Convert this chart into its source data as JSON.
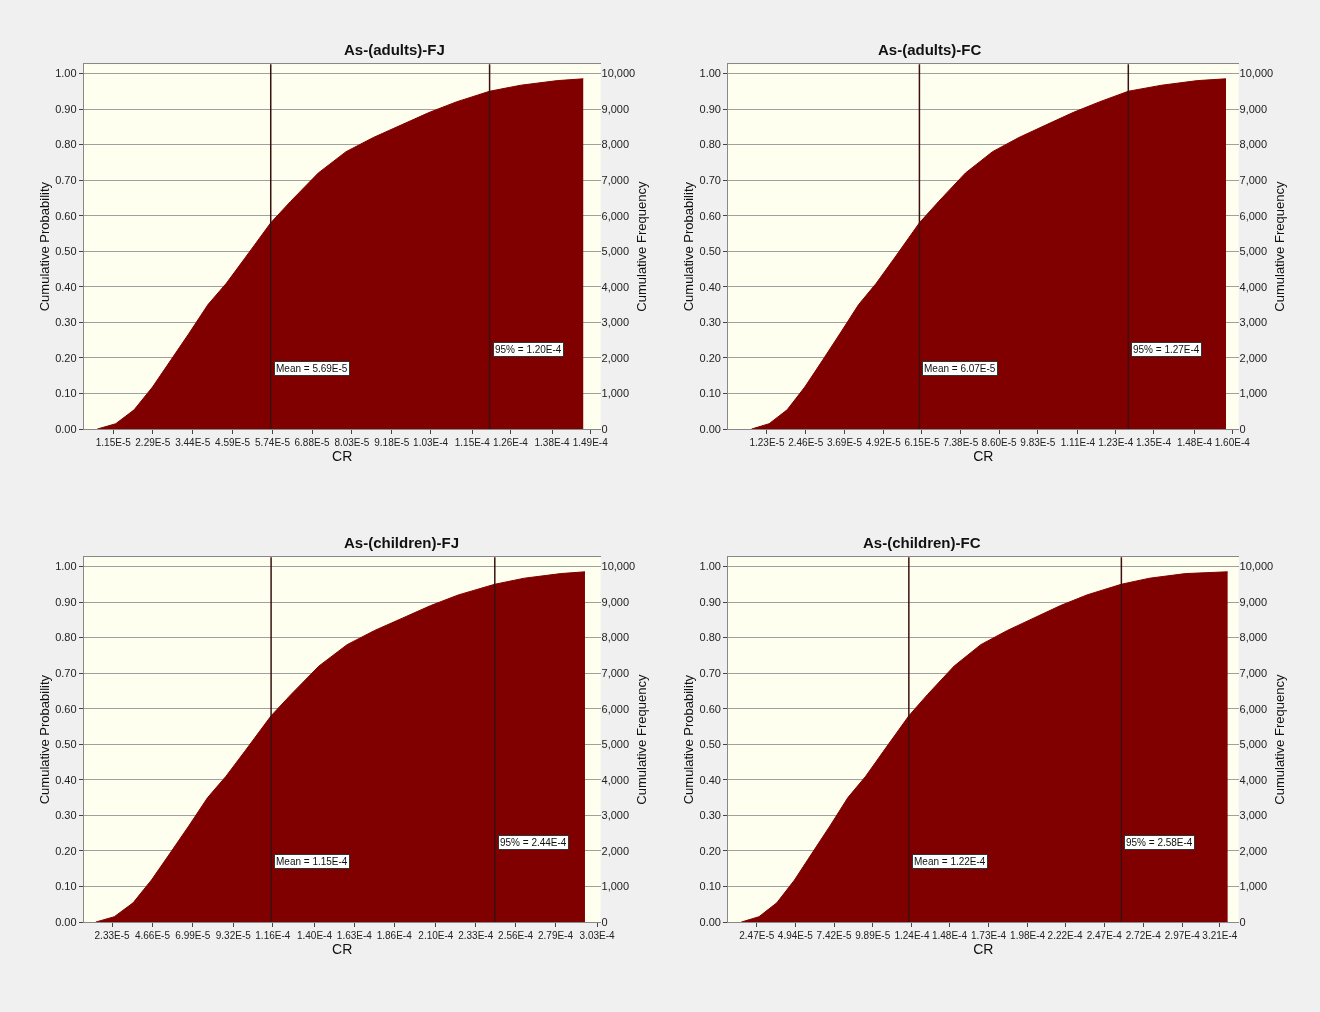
{
  "chart_data": [
    {
      "type": "area",
      "title": "As-(adults)-FJ",
      "xlabel": "CR",
      "ylabel": "Cumulative Probability",
      "y2label": "Cumulative Frequency",
      "color": "#800000",
      "grid": "y",
      "x": [
        6.9e-06,
        1.22e-05,
        1.75e-05,
        2.28e-05,
        2.81e-05,
        3.34e-05,
        3.88e-05,
        4.41e-05,
        4.94e-05,
        5.69e-05,
        6.26e-05,
        7.06e-05,
        7.86e-05,
        8.65e-05,
        9.45e-05,
        0.0001025,
        0.0001104,
        0.00012,
        0.000129,
        0.0001396,
        0.000147
      ],
      "values": [
        0,
        0.015,
        0.054,
        0.118,
        0.194,
        0.27,
        0.35,
        0.41,
        0.48,
        0.58,
        0.64,
        0.72,
        0.78,
        0.82,
        0.855,
        0.89,
        0.92,
        0.95,
        0.967,
        0.98,
        0.985
      ],
      "xlim": [
        3e-06,
        0.000152
      ],
      "xticks": [
        {
          "value": 1.15e-05,
          "label": "1.15E-5"
        },
        {
          "value": 2.29e-05,
          "label": "2.29E-5"
        },
        {
          "value": 3.44e-05,
          "label": "3.44E-5"
        },
        {
          "value": 4.59e-05,
          "label": "4.59E-5"
        },
        {
          "value": 5.74e-05,
          "label": "5.74E-5"
        },
        {
          "value": 6.88e-05,
          "label": "6.88E-5"
        },
        {
          "value": 8.03e-05,
          "label": "8.03E-5"
        },
        {
          "value": 9.18e-05,
          "label": "9.18E-5"
        },
        {
          "value": 0.000103,
          "label": "1.03E-4"
        },
        {
          "value": 0.000115,
          "label": "1.15E-4"
        },
        {
          "value": 0.000126,
          "label": "1.26E-4"
        },
        {
          "value": 0.000138,
          "label": "1.38E-4"
        },
        {
          "value": 0.000149,
          "label": "1.49E-4"
        }
      ],
      "ylim": [
        0,
        1.026
      ],
      "yticks": [
        {
          "value": 0,
          "label": "0.00"
        },
        {
          "value": 0.1,
          "label": "0.10"
        },
        {
          "value": 0.2,
          "label": "0.20"
        },
        {
          "value": 0.3,
          "label": "0.30"
        },
        {
          "value": 0.4,
          "label": "0.40"
        },
        {
          "value": 0.5,
          "label": "0.50"
        },
        {
          "value": 0.6,
          "label": "0.60"
        },
        {
          "value": 0.7,
          "label": "0.70"
        },
        {
          "value": 0.8,
          "label": "0.80"
        },
        {
          "value": 0.9,
          "label": "0.90"
        },
        {
          "value": 1,
          "label": "1.00"
        }
      ],
      "y2lim": [
        0,
        10260
      ],
      "y2ticks": [
        0,
        {
          "value": 1000,
          "label": "1,000"
        },
        {
          "value": 2000,
          "label": "2,000"
        },
        {
          "value": 3000,
          "label": "3,000"
        },
        {
          "value": 4000,
          "label": "4,000"
        },
        {
          "value": 5000,
          "label": "5,000"
        },
        {
          "value": 6000,
          "label": "6,000"
        },
        {
          "value": 7000,
          "label": "7,000"
        },
        {
          "value": 8000,
          "label": "8,000"
        },
        {
          "value": 9000,
          "label": "9,000"
        },
        {
          "value": 10000,
          "label": "10,000"
        }
      ],
      "ref_lines": [
        {
          "axis": "x",
          "value": 5.69e-05,
          "color": "#3a1010"
        },
        {
          "axis": "x",
          "value": 0.00012,
          "color": "#3a1010"
        }
      ],
      "annotations": [
        {
          "text": "Mean = 5.69E-5",
          "x": 5.69e-05,
          "y": 0.17
        },
        {
          "text": "95% = 1.20E-4",
          "x": 0.00012,
          "y": 0.225
        }
      ]
    },
    {
      "type": "area",
      "title": "As-(adults)-FC",
      "xlabel": "CR",
      "ylabel": "Cumulative Probability",
      "y2label": "Cumulative Frequency",
      "color": "#800000",
      "grid": "y",
      "x": [
        7.4e-06,
        1.3e-05,
        1.87e-05,
        2.43e-05,
        3e-05,
        3.56e-05,
        4.14e-05,
        4.7e-05,
        5.27e-05,
        6.07e-05,
        6.68e-05,
        7.53e-05,
        8.39e-05,
        9.23e-05,
        0.0001008,
        0.0001094,
        0.0001178,
        0.000127,
        0.0001376,
        0.000149,
        0.000158
      ],
      "values": [
        0,
        0.015,
        0.054,
        0.118,
        0.194,
        0.27,
        0.35,
        0.41,
        0.48,
        0.58,
        0.64,
        0.72,
        0.78,
        0.82,
        0.855,
        0.89,
        0.92,
        0.95,
        0.967,
        0.98,
        0.985
      ],
      "xlim": [
        0,
        0.000162
      ],
      "xticks": [
        {
          "value": 1.23e-05,
          "label": "1.23E-5"
        },
        {
          "value": 2.46e-05,
          "label": "2.46E-5"
        },
        {
          "value": 3.69e-05,
          "label": "3.69E-5"
        },
        {
          "value": 4.92e-05,
          "label": "4.92E-5"
        },
        {
          "value": 6.15e-05,
          "label": "6.15E-5"
        },
        {
          "value": 7.38e-05,
          "label": "7.38E-5"
        },
        {
          "value": 8.6e-05,
          "label": "8.60E-5"
        },
        {
          "value": 9.83e-05,
          "label": "9.83E-5"
        },
        {
          "value": 0.000111,
          "label": "1.11E-4"
        },
        {
          "value": 0.000123,
          "label": "1.23E-4"
        },
        {
          "value": 0.000135,
          "label": "1.35E-4"
        },
        {
          "value": 0.000148,
          "label": "1.48E-4"
        },
        {
          "value": 0.00016,
          "label": "1.60E-4"
        }
      ],
      "ylim": [
        0,
        1.026
      ],
      "yticks": [
        {
          "value": 0,
          "label": "0.00"
        },
        {
          "value": 0.1,
          "label": "0.10"
        },
        {
          "value": 0.2,
          "label": "0.20"
        },
        {
          "value": 0.3,
          "label": "0.30"
        },
        {
          "value": 0.4,
          "label": "0.40"
        },
        {
          "value": 0.5,
          "label": "0.50"
        },
        {
          "value": 0.6,
          "label": "0.60"
        },
        {
          "value": 0.7,
          "label": "0.70"
        },
        {
          "value": 0.8,
          "label": "0.80"
        },
        {
          "value": 0.9,
          "label": "0.90"
        },
        {
          "value": 1,
          "label": "1.00"
        }
      ],
      "y2lim": [
        0,
        10260
      ],
      "y2ticks": [
        0,
        {
          "value": 1000,
          "label": "1,000"
        },
        {
          "value": 2000,
          "label": "2,000"
        },
        {
          "value": 3000,
          "label": "3,000"
        },
        {
          "value": 4000,
          "label": "4,000"
        },
        {
          "value": 5000,
          "label": "5,000"
        },
        {
          "value": 6000,
          "label": "6,000"
        },
        {
          "value": 7000,
          "label": "7,000"
        },
        {
          "value": 8000,
          "label": "8,000"
        },
        {
          "value": 9000,
          "label": "9,000"
        },
        {
          "value": 10000,
          "label": "10,000"
        }
      ],
      "ref_lines": [
        {
          "axis": "x",
          "value": 6.07e-05,
          "color": "#3a1010"
        },
        {
          "axis": "x",
          "value": 0.000127,
          "color": "#3a1010"
        }
      ],
      "annotations": [
        {
          "text": "Mean = 6.07E-5",
          "x": 6.07e-05,
          "y": 0.17
        },
        {
          "text": "95% = 1.27E-4",
          "x": 0.000127,
          "y": 0.225
        }
      ]
    },
    {
      "type": "area",
      "title": "As-(children)-FJ",
      "xlabel": "CR",
      "ylabel": "Cumulative Probability",
      "y2label": "Cumulative Frequency",
      "color": "#800000",
      "grid": "y",
      "x": [
        1.39e-05,
        2.46e-05,
        3.54e-05,
        4.6e-05,
        5.68e-05,
        6.75e-05,
        7.84e-05,
        8.9e-05,
        9.98e-05,
        0.000115,
        0.0001265,
        0.0001426,
        0.0001588,
        0.0001747,
        0.0001909,
        0.000207,
        0.000223,
        0.000244,
        0.000261,
        0.000282,
        0.000296
      ],
      "values": [
        0,
        0.015,
        0.054,
        0.118,
        0.194,
        0.27,
        0.35,
        0.41,
        0.48,
        0.58,
        0.64,
        0.72,
        0.78,
        0.82,
        0.855,
        0.89,
        0.92,
        0.95,
        0.967,
        0.98,
        0.985
      ],
      "xlim": [
        7e-06,
        0.000305
      ],
      "xticks": [
        {
          "value": 2.33e-05,
          "label": "2.33E-5"
        },
        {
          "value": 4.66e-05,
          "label": "4.66E-5"
        },
        {
          "value": 6.99e-05,
          "label": "6.99E-5"
        },
        {
          "value": 9.32e-05,
          "label": "9.32E-5"
        },
        {
          "value": 0.000116,
          "label": "1.16E-4"
        },
        {
          "value": 0.00014,
          "label": "1.40E-4"
        },
        {
          "value": 0.000163,
          "label": "1.63E-4"
        },
        {
          "value": 0.000186,
          "label": "1.86E-4"
        },
        {
          "value": 0.00021,
          "label": "2.10E-4"
        },
        {
          "value": 0.000233,
          "label": "2.33E-4"
        },
        {
          "value": 0.000256,
          "label": "2.56E-4"
        },
        {
          "value": 0.000279,
          "label": "2.79E-4"
        },
        {
          "value": 0.000303,
          "label": "3.03E-4"
        }
      ],
      "ylim": [
        0,
        1.026
      ],
      "yticks": [
        {
          "value": 0,
          "label": "0.00"
        },
        {
          "value": 0.1,
          "label": "0.10"
        },
        {
          "value": 0.2,
          "label": "0.20"
        },
        {
          "value": 0.3,
          "label": "0.30"
        },
        {
          "value": 0.4,
          "label": "0.40"
        },
        {
          "value": 0.5,
          "label": "0.50"
        },
        {
          "value": 0.6,
          "label": "0.60"
        },
        {
          "value": 0.7,
          "label": "0.70"
        },
        {
          "value": 0.8,
          "label": "0.80"
        },
        {
          "value": 0.9,
          "label": "0.90"
        },
        {
          "value": 1,
          "label": "1.00"
        }
      ],
      "y2lim": [
        0,
        10260
      ],
      "y2ticks": [
        0,
        {
          "value": 1000,
          "label": "1,000"
        },
        {
          "value": 2000,
          "label": "2,000"
        },
        {
          "value": 3000,
          "label": "3,000"
        },
        {
          "value": 4000,
          "label": "4,000"
        },
        {
          "value": 5000,
          "label": "5,000"
        },
        {
          "value": 6000,
          "label": "6,000"
        },
        {
          "value": 7000,
          "label": "7,000"
        },
        {
          "value": 8000,
          "label": "8,000"
        },
        {
          "value": 9000,
          "label": "9,000"
        },
        {
          "value": 10000,
          "label": "10,000"
        }
      ],
      "ref_lines": [
        {
          "axis": "x",
          "value": 0.000115,
          "color": "#3a1010"
        },
        {
          "axis": "x",
          "value": 0.000244,
          "color": "#3a1010"
        }
      ],
      "annotations": [
        {
          "text": "Mean = 1.15E-4",
          "x": 0.000115,
          "y": 0.17
        },
        {
          "text": "95% = 2.44E-4",
          "x": 0.000244,
          "y": 0.225
        }
      ]
    },
    {
      "type": "area",
      "title": "As-(children)-FC",
      "xlabel": "CR",
      "ylabel": "Cumulative Probability",
      "y2label": "Cumulative Frequency",
      "color": "#800000",
      "grid": "y",
      "x": [
        1.48e-05,
        2.61e-05,
        3.75e-05,
        4.88e-05,
        6.01e-05,
        7.15e-05,
        8.3e-05,
        9.44e-05,
        0.0001057,
        0.000122,
        0.000134,
        0.000151,
        0.000168,
        0.000185,
        0.000202,
        0.000219,
        0.000236,
        0.000258,
        0.000276,
        0.000299,
        0.000326
      ],
      "values": [
        0,
        0.015,
        0.054,
        0.118,
        0.194,
        0.27,
        0.35,
        0.41,
        0.48,
        0.58,
        0.64,
        0.72,
        0.78,
        0.82,
        0.855,
        0.89,
        0.92,
        0.95,
        0.967,
        0.98,
        0.985
      ],
      "xlim": [
        6.4e-06,
        0.000333
      ],
      "xticks": [
        {
          "value": 2.47e-05,
          "label": "2.47E-5"
        },
        {
          "value": 4.94e-05,
          "label": "4.94E-5"
        },
        {
          "value": 7.42e-05,
          "label": "7.42E-5"
        },
        {
          "value": 9.89e-05,
          "label": "9.89E-5"
        },
        {
          "value": 0.000124,
          "label": "1.24E-4"
        },
        {
          "value": 0.000148,
          "label": "1.48E-4"
        },
        {
          "value": 0.000173,
          "label": "1.73E-4"
        },
        {
          "value": 0.000198,
          "label": "1.98E-4"
        },
        {
          "value": 0.000222,
          "label": "2.22E-4"
        },
        {
          "value": 0.000247,
          "label": "2.47E-4"
        },
        {
          "value": 0.000272,
          "label": "2.72E-4"
        },
        {
          "value": 0.000297,
          "label": "2.97E-4"
        },
        {
          "value": 0.000321,
          "label": "3.21E-4"
        }
      ],
      "ylim": [
        0,
        1.026
      ],
      "yticks": [
        {
          "value": 0,
          "label": "0.00"
        },
        {
          "value": 0.1,
          "label": "0.10"
        },
        {
          "value": 0.2,
          "label": "0.20"
        },
        {
          "value": 0.3,
          "label": "0.30"
        },
        {
          "value": 0.4,
          "label": "0.40"
        },
        {
          "value": 0.5,
          "label": "0.50"
        },
        {
          "value": 0.6,
          "label": "0.60"
        },
        {
          "value": 0.7,
          "label": "0.70"
        },
        {
          "value": 0.8,
          "label": "0.80"
        },
        {
          "value": 0.9,
          "label": "0.90"
        },
        {
          "value": 1,
          "label": "1.00"
        }
      ],
      "y2lim": [
        0,
        10260
      ],
      "y2ticks": [
        0,
        {
          "value": 1000,
          "label": "1,000"
        },
        {
          "value": 2000,
          "label": "2,000"
        },
        {
          "value": 3000,
          "label": "3,000"
        },
        {
          "value": 4000,
          "label": "4,000"
        },
        {
          "value": 5000,
          "label": "5,000"
        },
        {
          "value": 6000,
          "label": "6,000"
        },
        {
          "value": 7000,
          "label": "7,000"
        },
        {
          "value": 8000,
          "label": "8,000"
        },
        {
          "value": 9000,
          "label": "9,000"
        },
        {
          "value": 10000,
          "label": "10,000"
        }
      ],
      "ref_lines": [
        {
          "axis": "x",
          "value": 0.000122,
          "color": "#3a1010"
        },
        {
          "axis": "x",
          "value": 0.000258,
          "color": "#3a1010"
        }
      ],
      "annotations": [
        {
          "text": "Mean = 1.22E-4",
          "x": 0.000122,
          "y": 0.17
        },
        {
          "text": "95% = 2.58E-4",
          "x": 0.000258,
          "y": 0.225
        }
      ]
    }
  ]
}
